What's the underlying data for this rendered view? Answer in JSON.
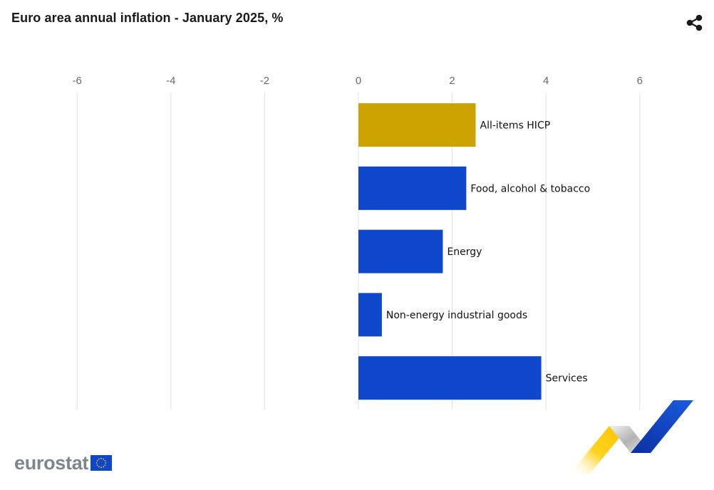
{
  "header": {
    "title": "Euro area annual inflation - January 2025, %",
    "share_icon": "share-icon"
  },
  "branding": {
    "logo_text": "eurostat",
    "flag_icon": "eu-flag-icon",
    "decoration_icon": "eurostat-swoosh-icon"
  },
  "chart_data": {
    "type": "bar",
    "orientation": "horizontal",
    "title": "Euro area annual inflation - January 2025, %",
    "xlabel": "",
    "ylabel": "",
    "xlim": [
      -6,
      6
    ],
    "x_ticks": [
      -6,
      -4,
      -2,
      0,
      2,
      4,
      6
    ],
    "grid": true,
    "categories": [
      "All-items HICP",
      "Food, alcohol & tobacco",
      "Energy",
      "Non-energy industrial goods",
      "Services"
    ],
    "values": [
      2.5,
      2.3,
      1.8,
      0.5,
      3.9
    ],
    "colors": [
      "#cca300",
      "#0e47cb",
      "#0e47cb",
      "#0e47cb",
      "#0e47cb"
    ],
    "gridline_color": "#e6e6e6"
  }
}
